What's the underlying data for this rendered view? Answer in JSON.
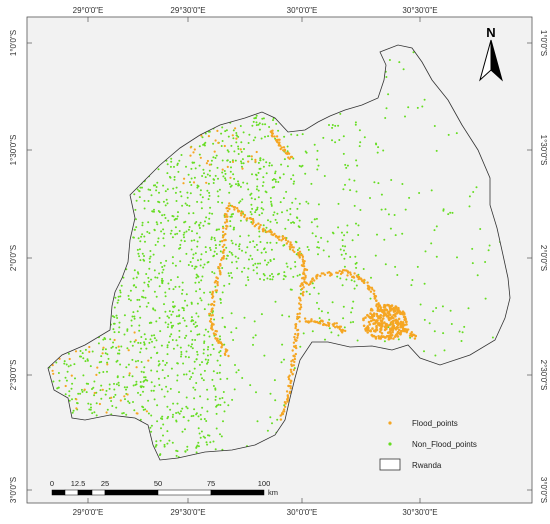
{
  "map": {
    "axis": {
      "top_labels": [
        "29°0'0\"E",
        "29°30'0\"E",
        "30°0'0\"E",
        "30°30'0\"E"
      ],
      "bottom_labels": [
        "29°0'0\"E",
        "29°30'0\"E",
        "30°0'0\"E",
        "30°30'0\"E"
      ],
      "left_labels": [
        "1°0'0\"S",
        "1°30'0\"S",
        "2°0'0\"S",
        "2°30'0\"S",
        "3°0'0\"S"
      ],
      "right_labels": [
        "1°0'0\"S",
        "1°30'0\"S",
        "2°0'0\"S",
        "2°30'0\"S",
        "3°0'0\"S"
      ]
    },
    "north_arrow": {
      "letter": "N",
      "icon": "north-arrow-icon"
    },
    "legend": {
      "items": [
        {
          "label": "Flood_points",
          "symbol": "point",
          "color": "#f5a623"
        },
        {
          "label": "Non_Flood_points",
          "symbol": "point",
          "color": "#66dd22"
        },
        {
          "label": "Rwanda",
          "symbol": "polygon",
          "color": "#ffffff"
        }
      ]
    },
    "scale_bar": {
      "labels": [
        "0",
        "12.5",
        "25",
        "50",
        "75",
        "100"
      ],
      "unit": "km"
    },
    "colors": {
      "flood": "#f5a623",
      "non_flood": "#66dd22",
      "land": "#f2f2f2",
      "boundary": "#333333"
    }
  }
}
